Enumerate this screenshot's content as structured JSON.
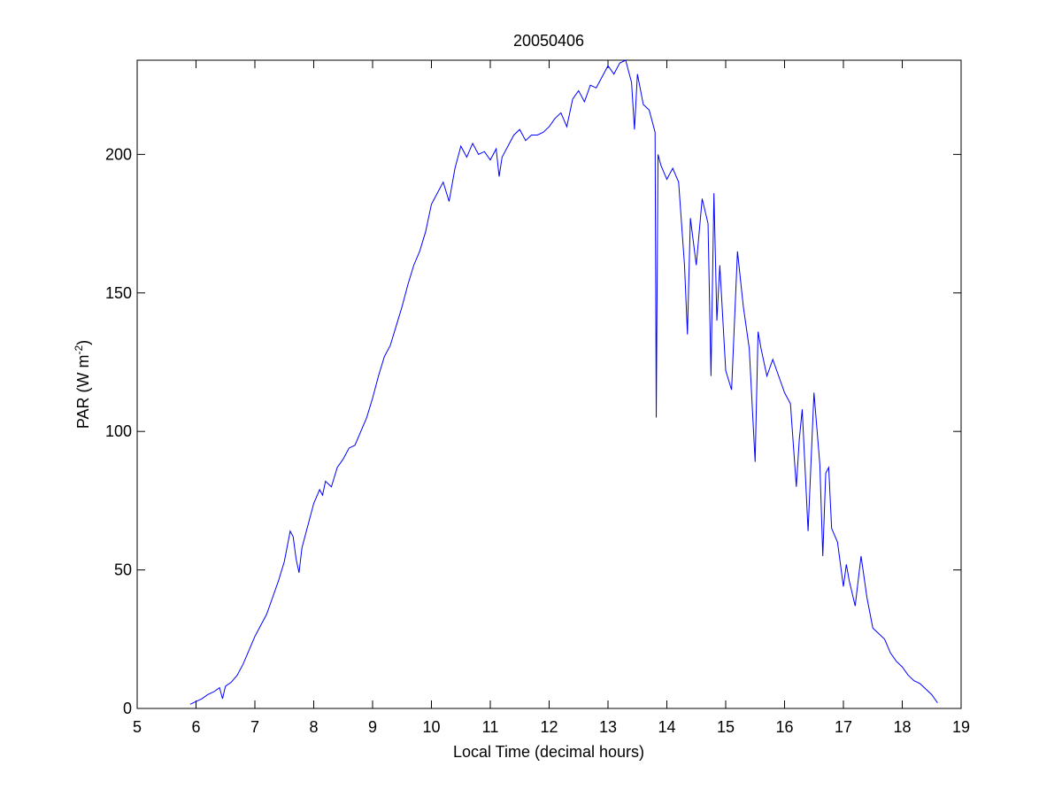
{
  "chart_data": {
    "type": "line",
    "title": "20050406",
    "xlabel": "Local Time (decimal hours)",
    "ylabel": {
      "text": "PAR (W m",
      "superscript": "-2",
      "suffix": ")"
    },
    "xlim": [
      5,
      19
    ],
    "ylim": [
      0,
      234
    ],
    "xticks": [
      5,
      6,
      7,
      8,
      9,
      10,
      11,
      12,
      13,
      14,
      15,
      16,
      17,
      18,
      19
    ],
    "yticks": [
      0,
      50,
      100,
      150,
      200
    ],
    "grid": false,
    "series": [
      {
        "color": "#0000ff",
        "x": [
          5.9,
          6.0,
          6.1,
          6.2,
          6.3,
          6.4,
          6.45,
          6.5,
          6.6,
          6.7,
          6.8,
          6.9,
          7.0,
          7.1,
          7.2,
          7.3,
          7.4,
          7.5,
          7.6,
          7.65,
          7.7,
          7.75,
          7.8,
          7.9,
          8.0,
          8.1,
          8.15,
          8.2,
          8.3,
          8.4,
          8.5,
          8.6,
          8.7,
          8.8,
          8.9,
          9.0,
          9.1,
          9.2,
          9.3,
          9.4,
          9.5,
          9.6,
          9.7,
          9.8,
          9.9,
          10.0,
          10.1,
          10.2,
          10.3,
          10.4,
          10.5,
          10.6,
          10.7,
          10.8,
          10.9,
          11.0,
          11.1,
          11.15,
          11.2,
          11.3,
          11.4,
          11.5,
          11.6,
          11.7,
          11.8,
          11.9,
          12.0,
          12.1,
          12.2,
          12.3,
          12.4,
          12.5,
          12.6,
          12.7,
          12.8,
          12.9,
          13.0,
          13.1,
          13.2,
          13.3,
          13.4,
          13.45,
          13.5,
          13.6,
          13.7,
          13.8,
          13.82,
          13.85,
          13.9,
          14.0,
          14.1,
          14.2,
          14.3,
          14.35,
          14.4,
          14.5,
          14.6,
          14.7,
          14.75,
          14.8,
          14.85,
          14.9,
          15.0,
          15.1,
          15.2,
          15.3,
          15.4,
          15.5,
          15.55,
          15.6,
          15.7,
          15.8,
          15.9,
          16.0,
          16.1,
          16.2,
          16.25,
          16.3,
          16.4,
          16.5,
          16.6,
          16.65,
          16.7,
          16.75,
          16.8,
          16.9,
          17.0,
          17.05,
          17.1,
          17.2,
          17.3,
          17.4,
          17.5,
          17.6,
          17.7,
          17.8,
          17.9,
          18.0,
          18.1,
          18.2,
          18.3,
          18.4,
          18.5,
          18.6
        ],
        "values": [
          1.5,
          2.5,
          3.5,
          5,
          6,
          7.5,
          3.5,
          8,
          9.5,
          12,
          16,
          21,
          26,
          30,
          34,
          40,
          46,
          53,
          64,
          62,
          54,
          49,
          58,
          66,
          74,
          79,
          77,
          82,
          80,
          87,
          90,
          94,
          95,
          100,
          105,
          112,
          120,
          127,
          131,
          138,
          145,
          153,
          160,
          165,
          172,
          182,
          186,
          190,
          183,
          195,
          203,
          199,
          204,
          200,
          201,
          198,
          202,
          192,
          199,
          203,
          207,
          209,
          205,
          207,
          207,
          208,
          210,
          213,
          215,
          210,
          220,
          223,
          219,
          225,
          224,
          228,
          232,
          229,
          233,
          234,
          226,
          209,
          229,
          218,
          216,
          208,
          105,
          200,
          196,
          191,
          195,
          190,
          160,
          135,
          177,
          160,
          184,
          175,
          120,
          186,
          140,
          160,
          122,
          115,
          165,
          145,
          130,
          89,
          136,
          130,
          120,
          126,
          120,
          114,
          110,
          80,
          97,
          108,
          64,
          114,
          88,
          55,
          85,
          87,
          65,
          60,
          44,
          52,
          46,
          37,
          55,
          40,
          29,
          27,
          25,
          20,
          17,
          15,
          12,
          10,
          9,
          7,
          5,
          2
        ]
      }
    ]
  }
}
